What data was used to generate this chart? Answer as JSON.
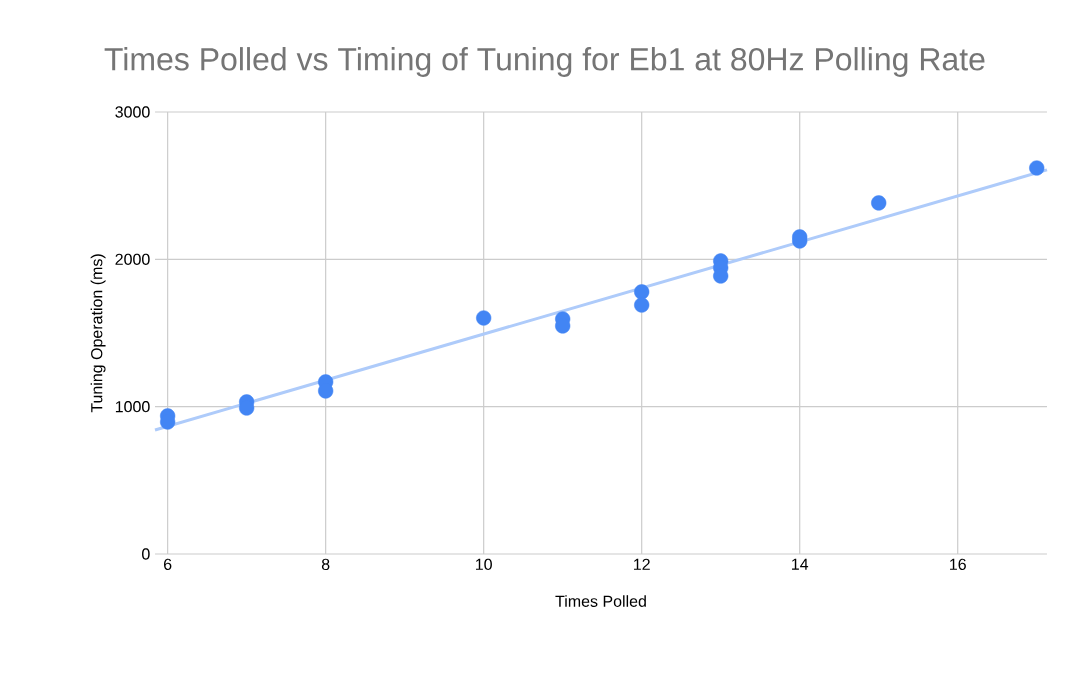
{
  "chart_data": {
    "type": "scatter",
    "title": "Times Polled vs Timing of Tuning for Eb1 at 80Hz Polling Rate",
    "xlabel": "Times Polled",
    "ylabel": "Tuning Operation (ms)",
    "series": [
      {
        "color": "#4285f4",
        "x": [
          6,
          6,
          7,
          7,
          8,
          8,
          10,
          11,
          11,
          12,
          12,
          13,
          13,
          13,
          14,
          14,
          15,
          17
        ],
        "values": [
          937,
          896,
          1032,
          991,
          1168,
          1107,
          1602,
          1595,
          1548,
          1779,
          1690,
          1989,
          1942,
          1887,
          2152,
          2125,
          2383,
          2620
        ]
      },
      {
        "type": "line",
        "marker": "none",
        "color": "#aecbfa",
        "x": [
          5.84,
          17.13
        ],
        "values": [
          842,
          2607
        ]
      }
    ],
    "xlim": [
      5.84,
      17.13
    ],
    "ylim": [
      0,
      3000
    ],
    "xticks": [
      6,
      8,
      10,
      12,
      14,
      16
    ],
    "yticks": [
      0,
      1000,
      2000,
      3000
    ],
    "grid": true,
    "marker": "circle"
  }
}
